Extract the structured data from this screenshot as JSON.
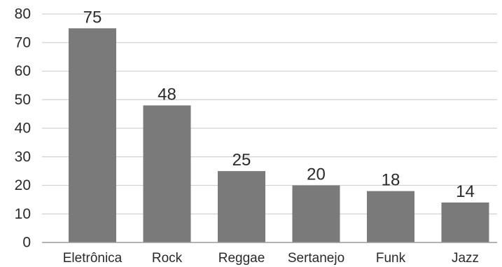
{
  "chart_data": {
    "type": "bar",
    "categories": [
      "Eletrônica",
      "Rock",
      "Reggae",
      "Sertanejo",
      "Funk",
      "Jazz"
    ],
    "values": [
      75,
      48,
      25,
      20,
      18,
      14
    ],
    "title": "",
    "xlabel": "",
    "ylabel": "",
    "ylim": [
      0,
      80
    ],
    "yticks": [
      0,
      10,
      20,
      30,
      40,
      50,
      60,
      70,
      80
    ],
    "grid": true,
    "legend": "none",
    "bar_color": "#7a7a7a"
  }
}
